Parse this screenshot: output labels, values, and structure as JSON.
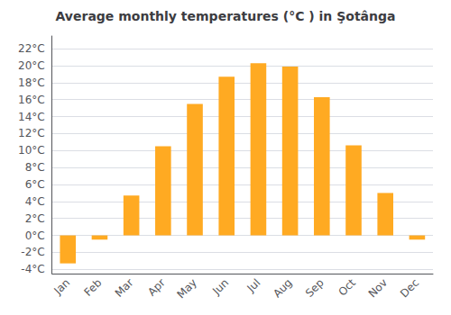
{
  "chart_data": {
    "type": "bar",
    "title": "Average monthly temperatures (°C ) in Şotânga",
    "categories": [
      "Jan",
      "Feb",
      "Mar",
      "Apr",
      "May",
      "Jun",
      "Jul",
      "Aug",
      "Sep",
      "Oct",
      "Nov",
      "Dec"
    ],
    "values": [
      -3.3,
      -0.5,
      4.7,
      10.5,
      15.5,
      18.7,
      20.3,
      19.9,
      16.3,
      10.6,
      5.0,
      -0.5
    ],
    "color": "#FFAA22",
    "ylim": [
      -4.5,
      23.5
    ],
    "yticks": [
      {
        "value": -4,
        "label": "-4°C"
      },
      {
        "value": -2,
        "label": "-2°C"
      },
      {
        "value": 0,
        "label": "0°C"
      },
      {
        "value": 2,
        "label": "2°C"
      },
      {
        "value": 4,
        "label": "4°C"
      },
      {
        "value": 6,
        "label": "6°C"
      },
      {
        "value": 8,
        "label": "8°C"
      },
      {
        "value": 10,
        "label": "10°C"
      },
      {
        "value": 12,
        "label": "12°C"
      },
      {
        "value": 14,
        "label": "14°C"
      },
      {
        "value": 16,
        "label": "16°C"
      },
      {
        "value": 18,
        "label": "18°C"
      },
      {
        "value": 20,
        "label": "20°C"
      },
      {
        "value": 22,
        "label": "22°C"
      }
    ],
    "grid": true
  }
}
